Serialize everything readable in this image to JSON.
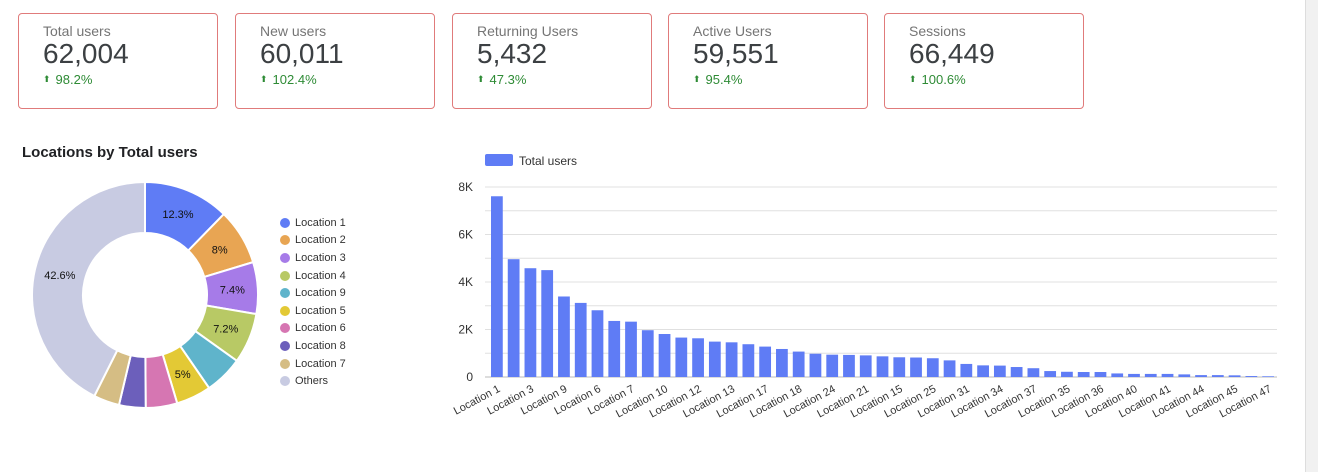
{
  "kpis": [
    {
      "label": "Total users",
      "value": "62,004",
      "change": "98.2%"
    },
    {
      "label": "New users",
      "value": "60,011",
      "change": "102.4%"
    },
    {
      "label": "Returning Users",
      "value": "5,432",
      "change": "47.3%"
    },
    {
      "label": "Active Users",
      "value": "59,551",
      "change": "95.4%"
    },
    {
      "label": "Sessions",
      "value": "66,449",
      "change": "100.6%"
    }
  ],
  "colors": {
    "card_border": "#e07b7b",
    "positive": "#2e8b35",
    "bar": "#5f7cf5"
  },
  "chart_data": [
    {
      "type": "pie",
      "title": "Locations by Total users",
      "donut": true,
      "legend": "right",
      "slices": [
        {
          "name": "Location 1",
          "value": 12.3,
          "label": "12.3%",
          "color": "#5f7cf5"
        },
        {
          "name": "Location 2",
          "value": 8,
          "label": "8%",
          "color": "#e8a553"
        },
        {
          "name": "Location 3",
          "value": 7.4,
          "label": "7.4%",
          "color": "#a67be8"
        },
        {
          "name": "Location 4",
          "value": 7.2,
          "label": "7.2%",
          "color": "#b8c965"
        },
        {
          "name": "Location 9",
          "value": 5.5,
          "label": "",
          "color": "#5fb4cb"
        },
        {
          "name": "Location 5",
          "value": 5,
          "label": "5%",
          "color": "#e3c935"
        },
        {
          "name": "Location 6",
          "value": 4.5,
          "label": "",
          "color": "#d676b2"
        },
        {
          "name": "Location 8",
          "value": 3.8,
          "label": "",
          "color": "#6c5fbb"
        },
        {
          "name": "Location 7",
          "value": 3.7,
          "label": "",
          "color": "#d5bd84"
        },
        {
          "name": "Others",
          "value": 42.6,
          "label": "42.6%",
          "color": "#c8cbe2"
        }
      ]
    },
    {
      "type": "bar",
      "legend": "top-left",
      "series": [
        {
          "name": "Total users"
        }
      ],
      "ylim": [
        0,
        8000
      ],
      "yticks": [
        "0",
        "2K",
        "4K",
        "6K",
        "8K"
      ],
      "grid": true,
      "categories": [
        "Location 1",
        "",
        "Location 3",
        "",
        "Location 9",
        "",
        "Location 6",
        "",
        "Location 7",
        "",
        "Location 10",
        "",
        "Location 12",
        "",
        "Location 13",
        "",
        "Location 17",
        "",
        "Location 18",
        "",
        "Location 24",
        "",
        "Location 21",
        "",
        "Location 15",
        "",
        "Location 25",
        "",
        "Location 31",
        "",
        "Location 34",
        "",
        "Location 37",
        "",
        "Location 35",
        "",
        "Location 36",
        "",
        "Location 40",
        "",
        "Location 41",
        "",
        "Location 44",
        "",
        "Location 45",
        "",
        "Location 47"
      ],
      "values": [
        7610,
        4960,
        4580,
        4500,
        3390,
        3120,
        2810,
        2360,
        2330,
        1970,
        1810,
        1660,
        1630,
        1490,
        1460,
        1380,
        1280,
        1180,
        1070,
        980,
        940,
        930,
        910,
        870,
        830,
        820,
        790,
        700,
        550,
        490,
        480,
        420,
        370,
        250,
        220,
        210,
        210,
        150,
        130,
        130,
        130,
        110,
        80,
        80,
        70,
        40,
        30
      ]
    }
  ]
}
